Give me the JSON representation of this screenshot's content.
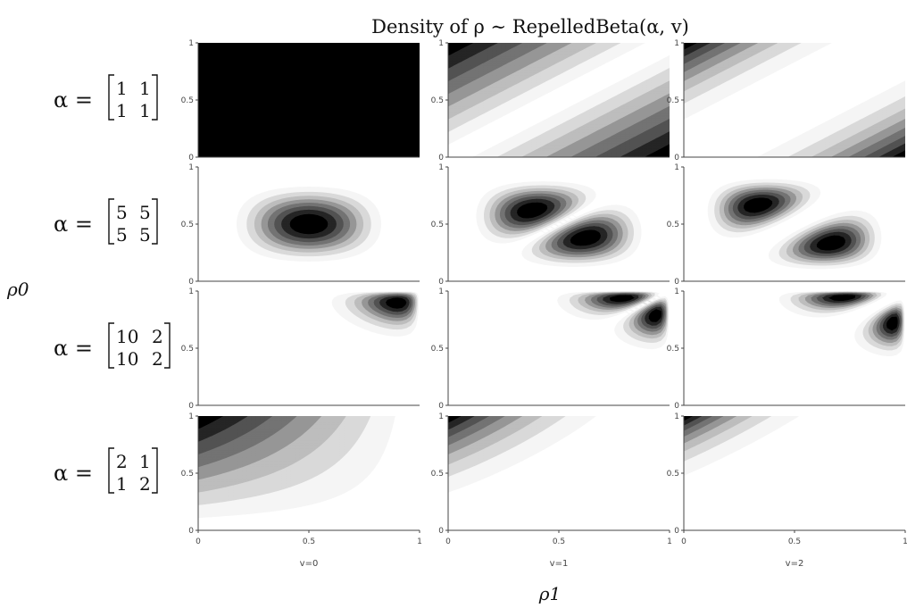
{
  "chart_data": {
    "type": "contour",
    "title": "Density of ρ ∼ RepelledBeta(α, v)",
    "xlabel": "ρ1",
    "ylabel": "ρ0",
    "xlim": [
      0,
      1
    ],
    "ylim": [
      0,
      1
    ],
    "x_ticks": [
      "0",
      "0.5",
      "1"
    ],
    "y_ticks": [
      "0",
      "0.5",
      "1"
    ],
    "grid": false,
    "colorscale": "greys",
    "columns": [
      {
        "label": "v=0",
        "v": 0
      },
      {
        "label": "v=1",
        "v": 1
      },
      {
        "label": "v=2",
        "v": 2
      }
    ],
    "rows": [
      {
        "alpha_label": "α =",
        "alpha": [
          [
            1,
            1
          ],
          [
            1,
            1
          ]
        ]
      },
      {
        "alpha_label": "α =",
        "alpha": [
          [
            5,
            5
          ],
          [
            5,
            5
          ]
        ]
      },
      {
        "alpha_label": "α =",
        "alpha": [
          [
            10,
            2
          ],
          [
            10,
            2
          ]
        ]
      },
      {
        "alpha_label": "α =",
        "alpha": [
          [
            2,
            1
          ],
          [
            1,
            2
          ]
        ]
      }
    ]
  }
}
